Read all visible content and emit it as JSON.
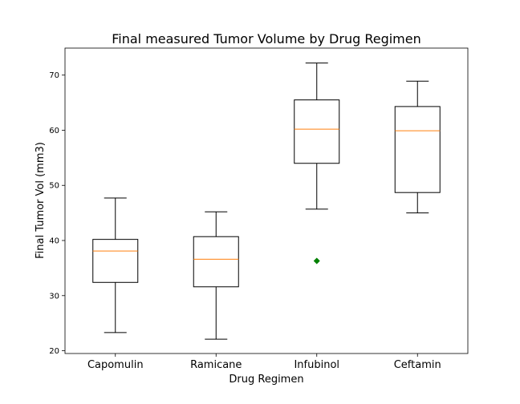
{
  "chart_data": {
    "type": "box",
    "title": "Final measured Tumor Volume by Drug Regimen",
    "xlabel": "Drug Regimen",
    "ylabel": "Final Tumor Vol (mm3)",
    "categories": [
      "Capomulin",
      "Ramicane",
      "Infubinol",
      "Ceftamin"
    ],
    "ylim": [
      19.5,
      74.9
    ],
    "yticks": [
      20,
      30,
      40,
      50,
      60,
      70
    ],
    "grid": false,
    "boxes": [
      {
        "name": "Capomulin",
        "whisker_low": 23.3,
        "q1": 32.4,
        "median": 38.1,
        "q3": 40.2,
        "whisker_high": 47.7,
        "outliers": []
      },
      {
        "name": "Ramicane",
        "whisker_low": 22.1,
        "q1": 31.6,
        "median": 36.6,
        "q3": 40.7,
        "whisker_high": 45.2,
        "outliers": []
      },
      {
        "name": "Infubinol",
        "whisker_low": 45.7,
        "q1": 54.0,
        "median": 60.2,
        "q3": 65.5,
        "whisker_high": 72.2,
        "outliers": [
          36.3
        ]
      },
      {
        "name": "Ceftamin",
        "whisker_low": 45.0,
        "q1": 48.7,
        "median": 59.9,
        "q3": 64.3,
        "whisker_high": 68.9,
        "outliers": []
      }
    ],
    "colors": {
      "box": "#000000",
      "median": "#ff7f0e",
      "outlier": "#008000"
    }
  }
}
